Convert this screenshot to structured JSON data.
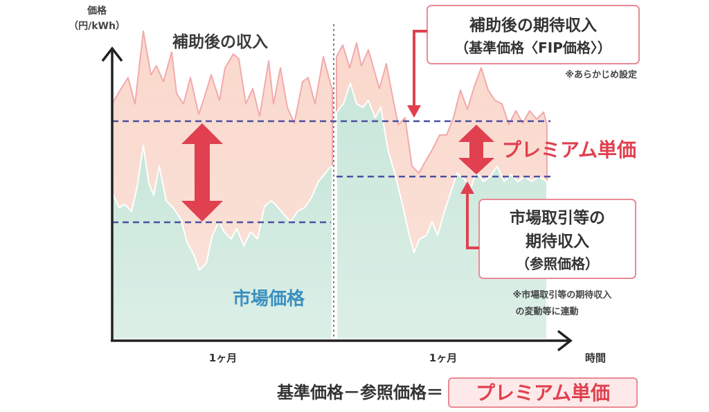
{
  "y_axis_label_line1": "価格",
  "y_axis_label_line2": "（円/kWh）",
  "x_axis_label": "時間",
  "x_tick_1": "1ヶ月",
  "x_tick_2": "1ヶ月",
  "label_subsidized_income": "補助後の収入",
  "label_market_price": "市場価格",
  "label_premium_unit_price": "プレミアム単価",
  "box_standard_price": {
    "line1": "補助後の期待収入",
    "line2": "（基準価格〈FIP価格〉）"
  },
  "note_preset": "※あらかじめ設定",
  "box_reference_price": {
    "line1": "市場取引等の",
    "line2": "期待収入",
    "line3": "（参照価格）"
  },
  "note_linked_line1": "※市場取引等の期待収入",
  "note_linked_line2": "の変動等に連動",
  "formula": {
    "left": "基準価格－参照価格＝",
    "result": "プレミアム単価"
  },
  "colors": {
    "pink_area": "#f9cfc3",
    "pink_top": "#fbe4dc",
    "green_area": "#cfe9df",
    "dashed_line": "#4b4fa0",
    "red": "#e0404f",
    "blue_text": "#3a8fc0",
    "box_border": "#e88a94"
  }
}
